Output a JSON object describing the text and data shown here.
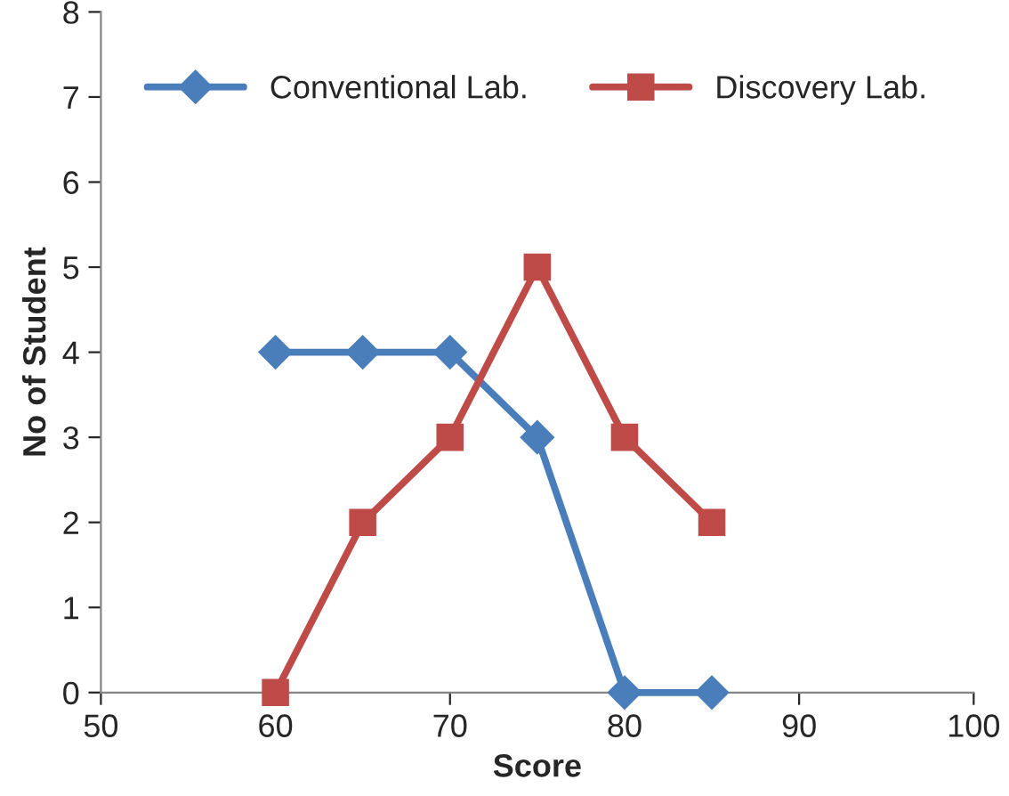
{
  "chart_data": {
    "type": "line",
    "xlabel": "Score",
    "ylabel": "No of Student",
    "series": [
      {
        "name": "Conventional Lab.",
        "color": "#4a7ebb",
        "marker": "diamond",
        "x": [
          60,
          65,
          70,
          75,
          80,
          85
        ],
        "values": [
          4,
          4,
          4,
          3,
          0,
          0
        ]
      },
      {
        "name": "Discovery Lab.",
        "color": "#be4b48",
        "marker": "square",
        "x": [
          60,
          65,
          70,
          75,
          80,
          85
        ],
        "values": [
          0,
          2,
          3,
          5,
          3,
          2
        ]
      }
    ],
    "xlim": [
      50,
      100
    ],
    "xticks": [
      50,
      60,
      70,
      80,
      90,
      100
    ],
    "ylim": [
      0,
      8
    ],
    "yticks": [
      0,
      1,
      2,
      3,
      4,
      5,
      6,
      7,
      8
    ],
    "grid": false,
    "legend": "top",
    "line_style": "solid"
  }
}
